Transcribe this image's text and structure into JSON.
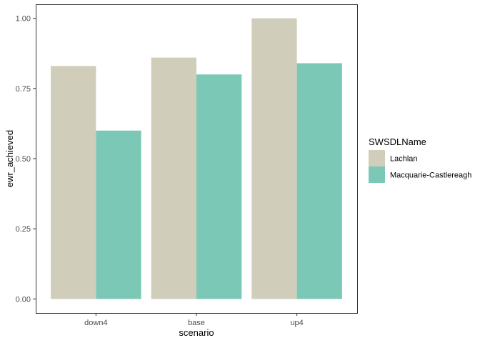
{
  "chart_data": {
    "type": "bar",
    "xlabel": "scenario",
    "ylabel": "ewr_achieved",
    "categories": [
      "down4",
      "base",
      "up4"
    ],
    "series": [
      {
        "name": "Lachlan",
        "color": "#D0CDBA",
        "values": [
          0.83,
          0.86,
          1.0
        ]
      },
      {
        "name": "Macquarie-Castlereagh",
        "color": "#7CC8B6",
        "values": [
          0.6,
          0.8,
          0.84
        ]
      }
    ],
    "ylim": [
      -0.05,
      1.05
    ],
    "yticks": [
      0.0,
      0.25,
      0.5,
      0.75,
      1.0
    ],
    "ytick_labels": [
      "0.00",
      "0.25",
      "0.50",
      "0.75",
      "1.00"
    ],
    "grid": false,
    "legend": {
      "title": "SWSDLName",
      "position": "right"
    },
    "bar_group": "dodge"
  }
}
